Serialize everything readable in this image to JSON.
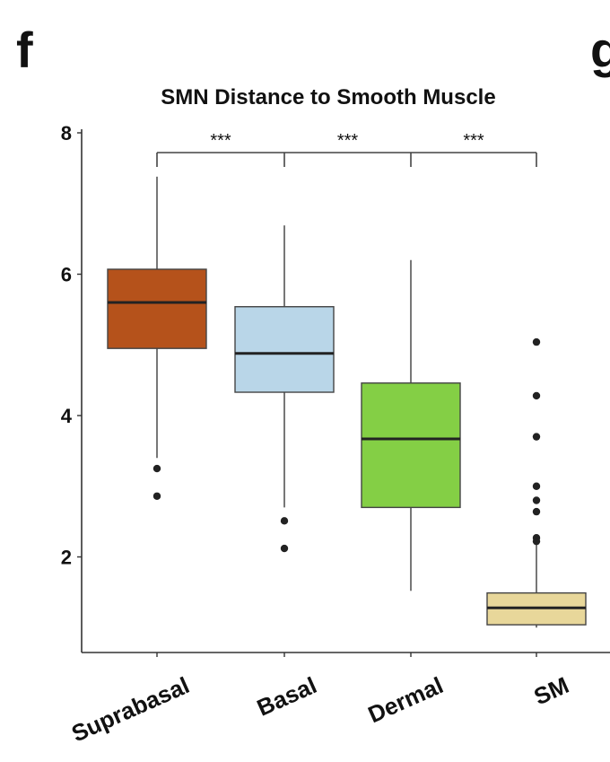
{
  "panel_labels": [
    "f",
    "g"
  ],
  "chart_data": {
    "type": "box",
    "title": "SMN Distance to Smooth Muscle",
    "xlabel": "",
    "ylabel": "",
    "ylim": [
      0.65,
      8.05
    ],
    "yticks": [
      2,
      4,
      6,
      8
    ],
    "ytick_labels": [
      "2",
      "4",
      "6",
      "8"
    ],
    "categories": [
      "Suprabasal",
      "Basal",
      "Dermal",
      "SM"
    ],
    "colors": [
      "#b5521b",
      "#b9d6e8",
      "#84cf45",
      "#e8d79a"
    ],
    "boxes": [
      {
        "name": "Suprabasal",
        "whisker_low": 3.4,
        "q1": 4.95,
        "median": 5.6,
        "q3": 6.07,
        "whisker_high": 7.38,
        "outliers": [
          3.25,
          2.86
        ]
      },
      {
        "name": "Basal",
        "whisker_low": 2.7,
        "q1": 4.33,
        "median": 4.88,
        "q3": 5.54,
        "whisker_high": 6.69,
        "outliers": [
          2.51,
          2.12
        ]
      },
      {
        "name": "Dermal",
        "whisker_low": 1.52,
        "q1": 2.7,
        "median": 3.67,
        "q3": 4.46,
        "whisker_high": 6.2,
        "outliers": []
      },
      {
        "name": "SM",
        "whisker_low": 1.0,
        "q1": 1.04,
        "median": 1.28,
        "q3": 1.49,
        "whisker_high": 2.2,
        "outliers": [
          5.04,
          4.28,
          3.7,
          3.0,
          2.8,
          2.64,
          2.27,
          2.22
        ]
      }
    ],
    "significance": [
      {
        "from": "Suprabasal",
        "to": "Basal",
        "label": "***"
      },
      {
        "from": "Basal",
        "to": "Dermal",
        "label": "***"
      },
      {
        "from": "Dermal",
        "to": "SM",
        "label": "***"
      }
    ],
    "grid": false,
    "legend": "none"
  }
}
